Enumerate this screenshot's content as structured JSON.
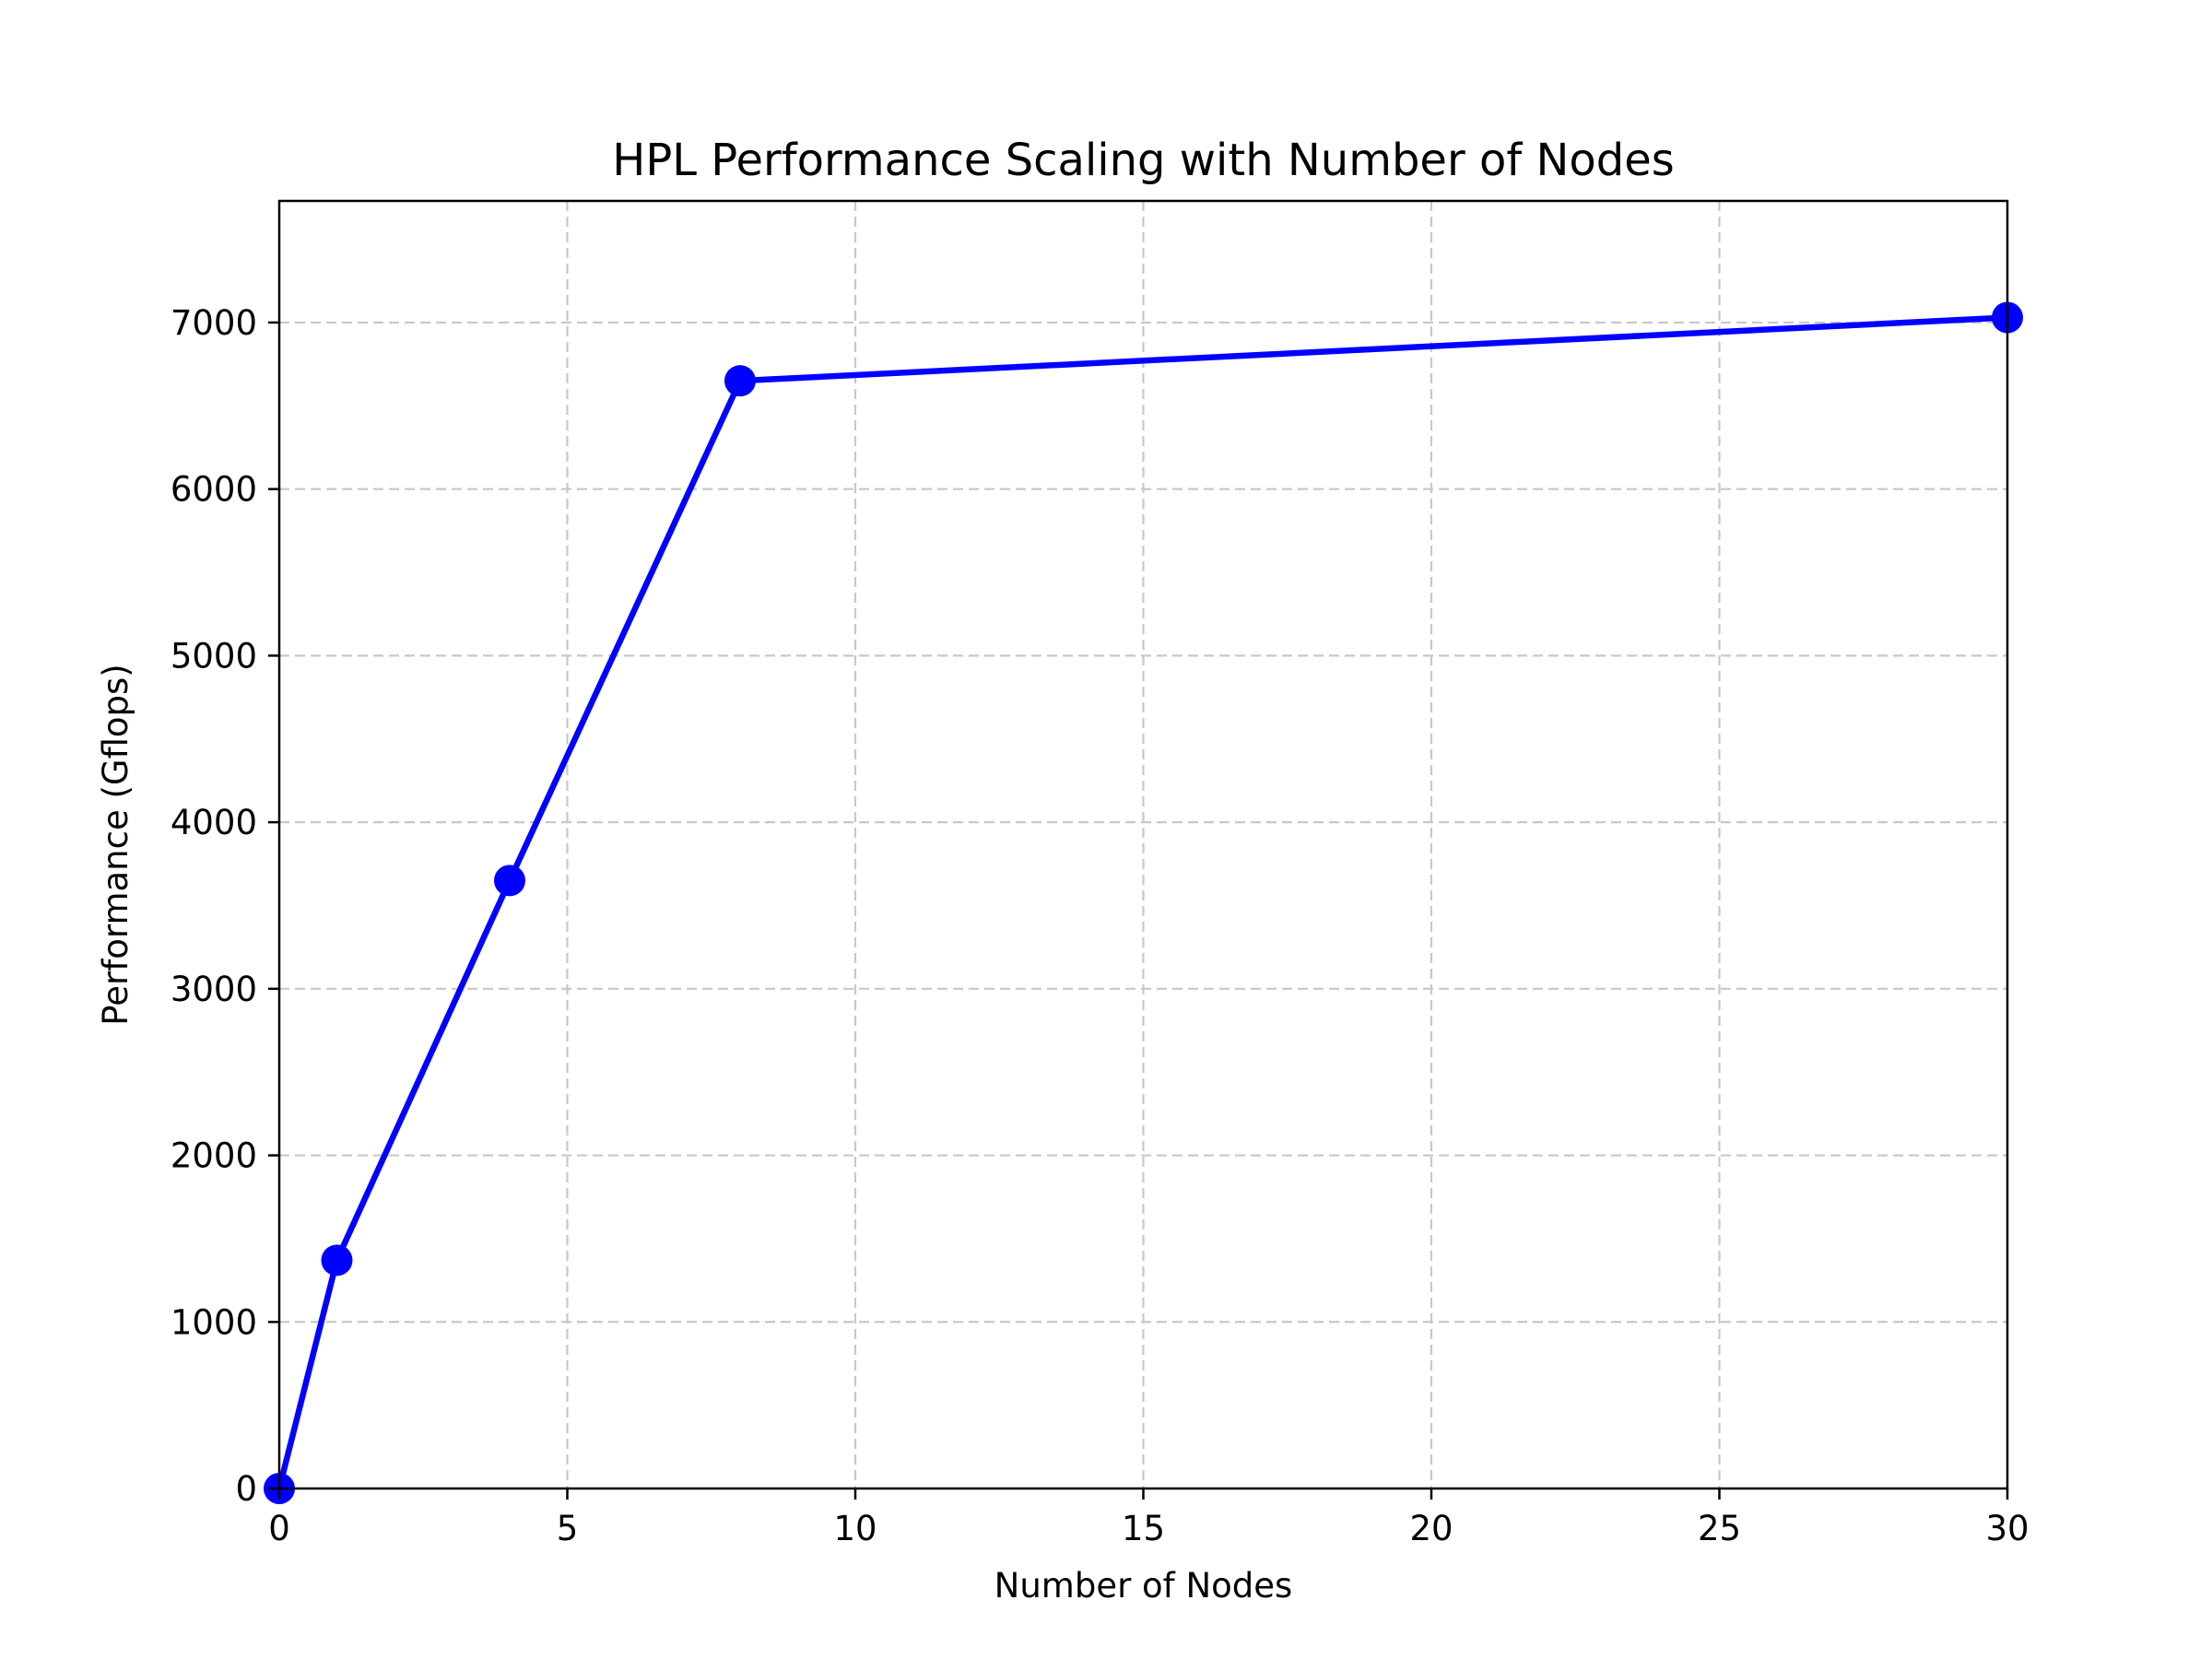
{
  "chart_data": {
    "type": "line",
    "title": "HPL Performance Scaling with Number of Nodes",
    "xlabel": "Number of Nodes",
    "ylabel": "Performance (Gflops)",
    "xlim": [
      0,
      30
    ],
    "ylim": [
      0,
      7730
    ],
    "xticks": [
      0,
      5,
      10,
      15,
      20,
      25,
      30
    ],
    "yticks": [
      0,
      1000,
      2000,
      3000,
      4000,
      5000,
      6000,
      7000
    ],
    "grid": true,
    "series": [
      {
        "x": [
          0,
          1,
          4,
          8,
          30
        ],
        "y": [
          0,
          1370,
          3650,
          6650,
          7030
        ],
        "color": "#0000ff",
        "marker": "circle"
      }
    ]
  }
}
